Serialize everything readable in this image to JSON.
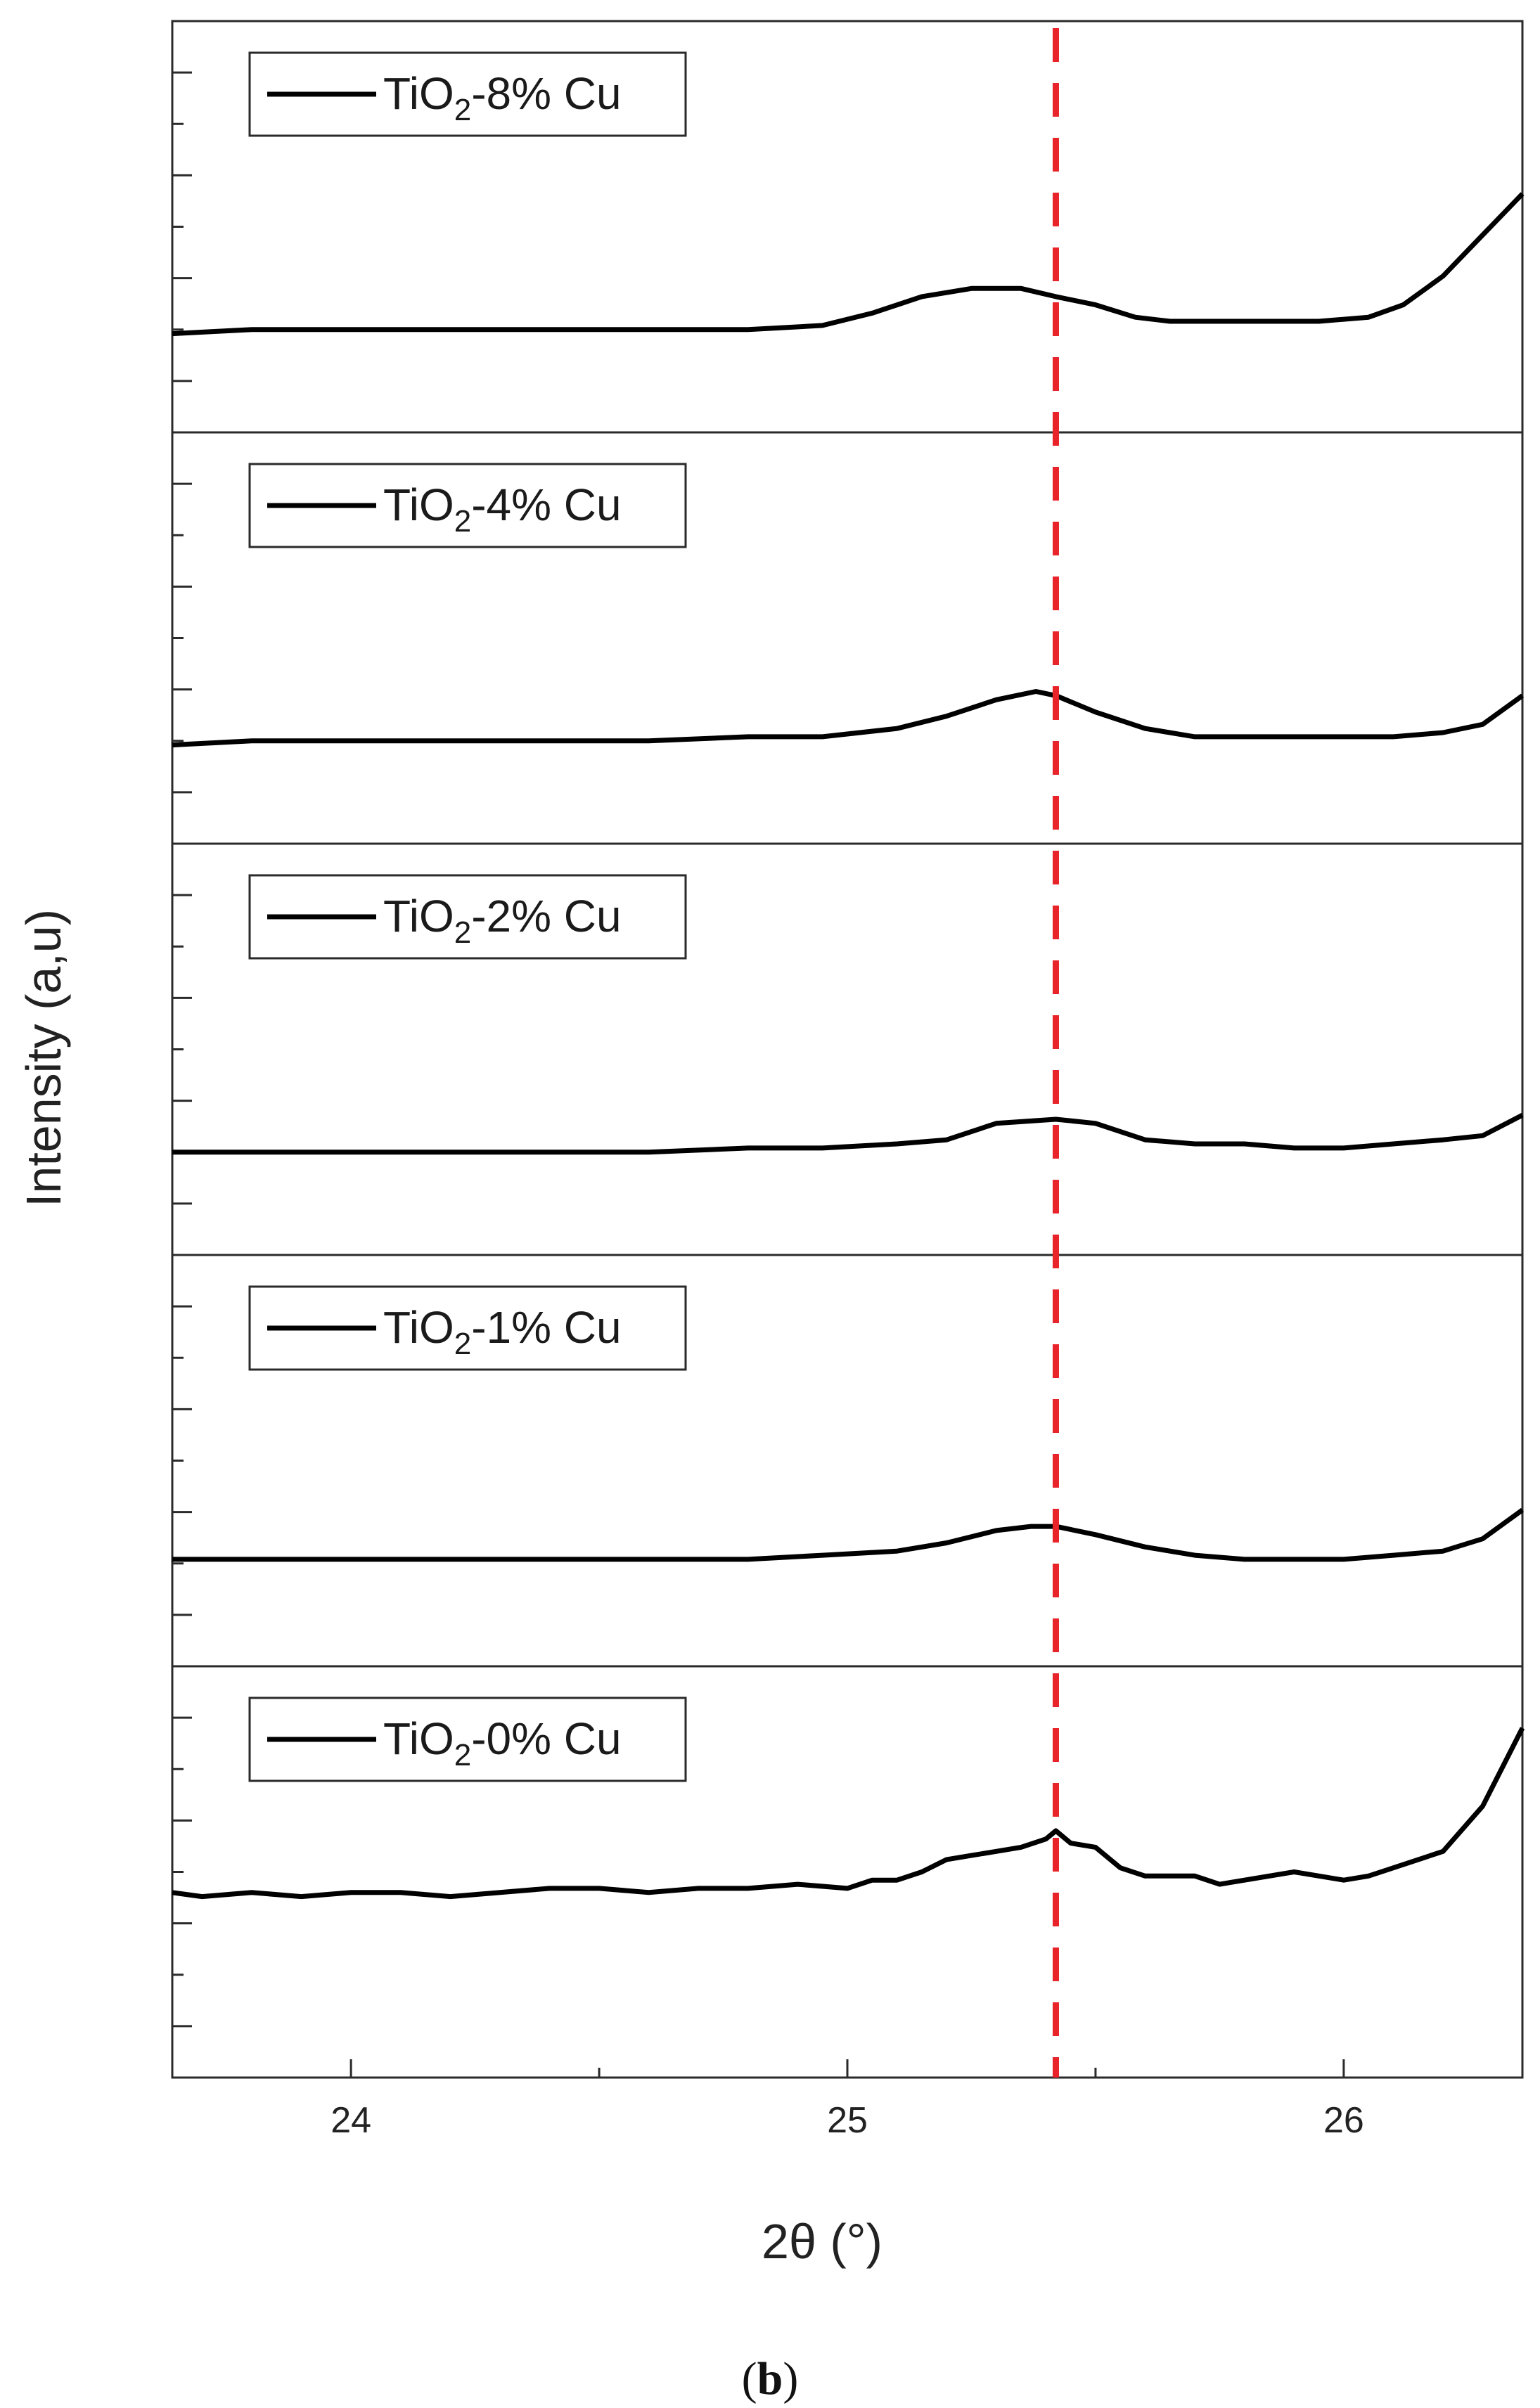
{
  "chart_data": {
    "type": "line",
    "xlabel": "2θ (°)",
    "ylabel": "Intensity (a,u)",
    "xlim": [
      23.64,
      26.36
    ],
    "ylim": [
      0,
      1
    ],
    "x_ticks": [
      "24",
      "25",
      "26"
    ],
    "grid": false,
    "reference_line": {
      "x": 25.42,
      "color": "#e8232a",
      "style": "dashed"
    },
    "series_color": "#000000",
    "series": [
      {
        "name": "TiO2-8% Cu",
        "legend": {
          "base": "TiO",
          "sub": "2",
          "rest": "-8% Cu"
        },
        "x": [
          23.64,
          23.8,
          24.0,
          24.2,
          24.4,
          24.6,
          24.8,
          24.95,
          25.05,
          25.15,
          25.25,
          25.35,
          25.42,
          25.5,
          25.58,
          25.65,
          25.75,
          25.85,
          25.95,
          26.05,
          26.12,
          26.2,
          26.28,
          26.36
        ],
        "y": [
          0.24,
          0.25,
          0.25,
          0.25,
          0.25,
          0.25,
          0.25,
          0.26,
          0.29,
          0.33,
          0.35,
          0.35,
          0.33,
          0.31,
          0.28,
          0.27,
          0.27,
          0.27,
          0.27,
          0.28,
          0.31,
          0.38,
          0.48,
          0.58
        ]
      },
      {
        "name": "TiO2-4% Cu",
        "legend": {
          "base": "TiO",
          "sub": "2",
          "rest": "-4% Cu"
        },
        "x": [
          23.64,
          23.8,
          24.0,
          24.2,
          24.4,
          24.6,
          24.8,
          24.95,
          25.1,
          25.2,
          25.3,
          25.38,
          25.42,
          25.5,
          25.6,
          25.7,
          25.8,
          25.9,
          26.0,
          26.1,
          26.2,
          26.28,
          26.36
        ],
        "y": [
          0.24,
          0.25,
          0.25,
          0.25,
          0.25,
          0.25,
          0.26,
          0.26,
          0.28,
          0.31,
          0.35,
          0.37,
          0.36,
          0.32,
          0.28,
          0.26,
          0.26,
          0.26,
          0.26,
          0.26,
          0.27,
          0.29,
          0.36
        ]
      },
      {
        "name": "TiO2-2% Cu",
        "legend": {
          "base": "TiO",
          "sub": "2",
          "rest": "-2% Cu"
        },
        "x": [
          23.64,
          23.8,
          24.0,
          24.2,
          24.4,
          24.6,
          24.8,
          24.95,
          25.1,
          25.2,
          25.3,
          25.42,
          25.5,
          25.6,
          25.7,
          25.8,
          25.9,
          26.0,
          26.1,
          26.2,
          26.28,
          26.36
        ],
        "y": [
          0.25,
          0.25,
          0.25,
          0.25,
          0.25,
          0.25,
          0.26,
          0.26,
          0.27,
          0.28,
          0.32,
          0.33,
          0.32,
          0.28,
          0.27,
          0.27,
          0.26,
          0.26,
          0.27,
          0.28,
          0.29,
          0.34
        ]
      },
      {
        "name": "TiO2-1% Cu",
        "legend": {
          "base": "TiO",
          "sub": "2",
          "rest": "-1% Cu"
        },
        "x": [
          23.64,
          23.8,
          24.0,
          24.2,
          24.4,
          24.6,
          24.8,
          24.95,
          25.1,
          25.2,
          25.3,
          25.37,
          25.42,
          25.5,
          25.6,
          25.7,
          25.8,
          25.9,
          26.0,
          26.1,
          26.2,
          26.28,
          26.36
        ],
        "y": [
          0.26,
          0.26,
          0.26,
          0.26,
          0.26,
          0.26,
          0.26,
          0.27,
          0.28,
          0.3,
          0.33,
          0.34,
          0.34,
          0.32,
          0.29,
          0.27,
          0.26,
          0.26,
          0.26,
          0.27,
          0.28,
          0.31,
          0.38
        ]
      },
      {
        "name": "TiO2-0% Cu",
        "legend": {
          "base": "TiO",
          "sub": "2",
          "rest": "-0% Cu"
        },
        "x": [
          23.64,
          23.7,
          23.8,
          23.9,
          24.0,
          24.1,
          24.2,
          24.3,
          24.4,
          24.5,
          24.6,
          24.7,
          24.8,
          24.9,
          25.0,
          25.05,
          25.1,
          25.15,
          25.2,
          25.25,
          25.3,
          25.35,
          25.4,
          25.42,
          25.45,
          25.5,
          25.55,
          25.6,
          25.7,
          25.75,
          25.8,
          25.9,
          26.0,
          26.05,
          26.1,
          26.2,
          26.28,
          26.36
        ],
        "y": [
          0.45,
          0.44,
          0.45,
          0.44,
          0.45,
          0.45,
          0.44,
          0.45,
          0.46,
          0.46,
          0.45,
          0.46,
          0.46,
          0.47,
          0.46,
          0.48,
          0.48,
          0.5,
          0.53,
          0.54,
          0.55,
          0.56,
          0.58,
          0.6,
          0.57,
          0.56,
          0.51,
          0.49,
          0.49,
          0.47,
          0.48,
          0.5,
          0.48,
          0.49,
          0.51,
          0.55,
          0.66,
          0.85
        ]
      }
    ]
  },
  "caption": {
    "open": "(",
    "letter": "b",
    "close": ")"
  }
}
